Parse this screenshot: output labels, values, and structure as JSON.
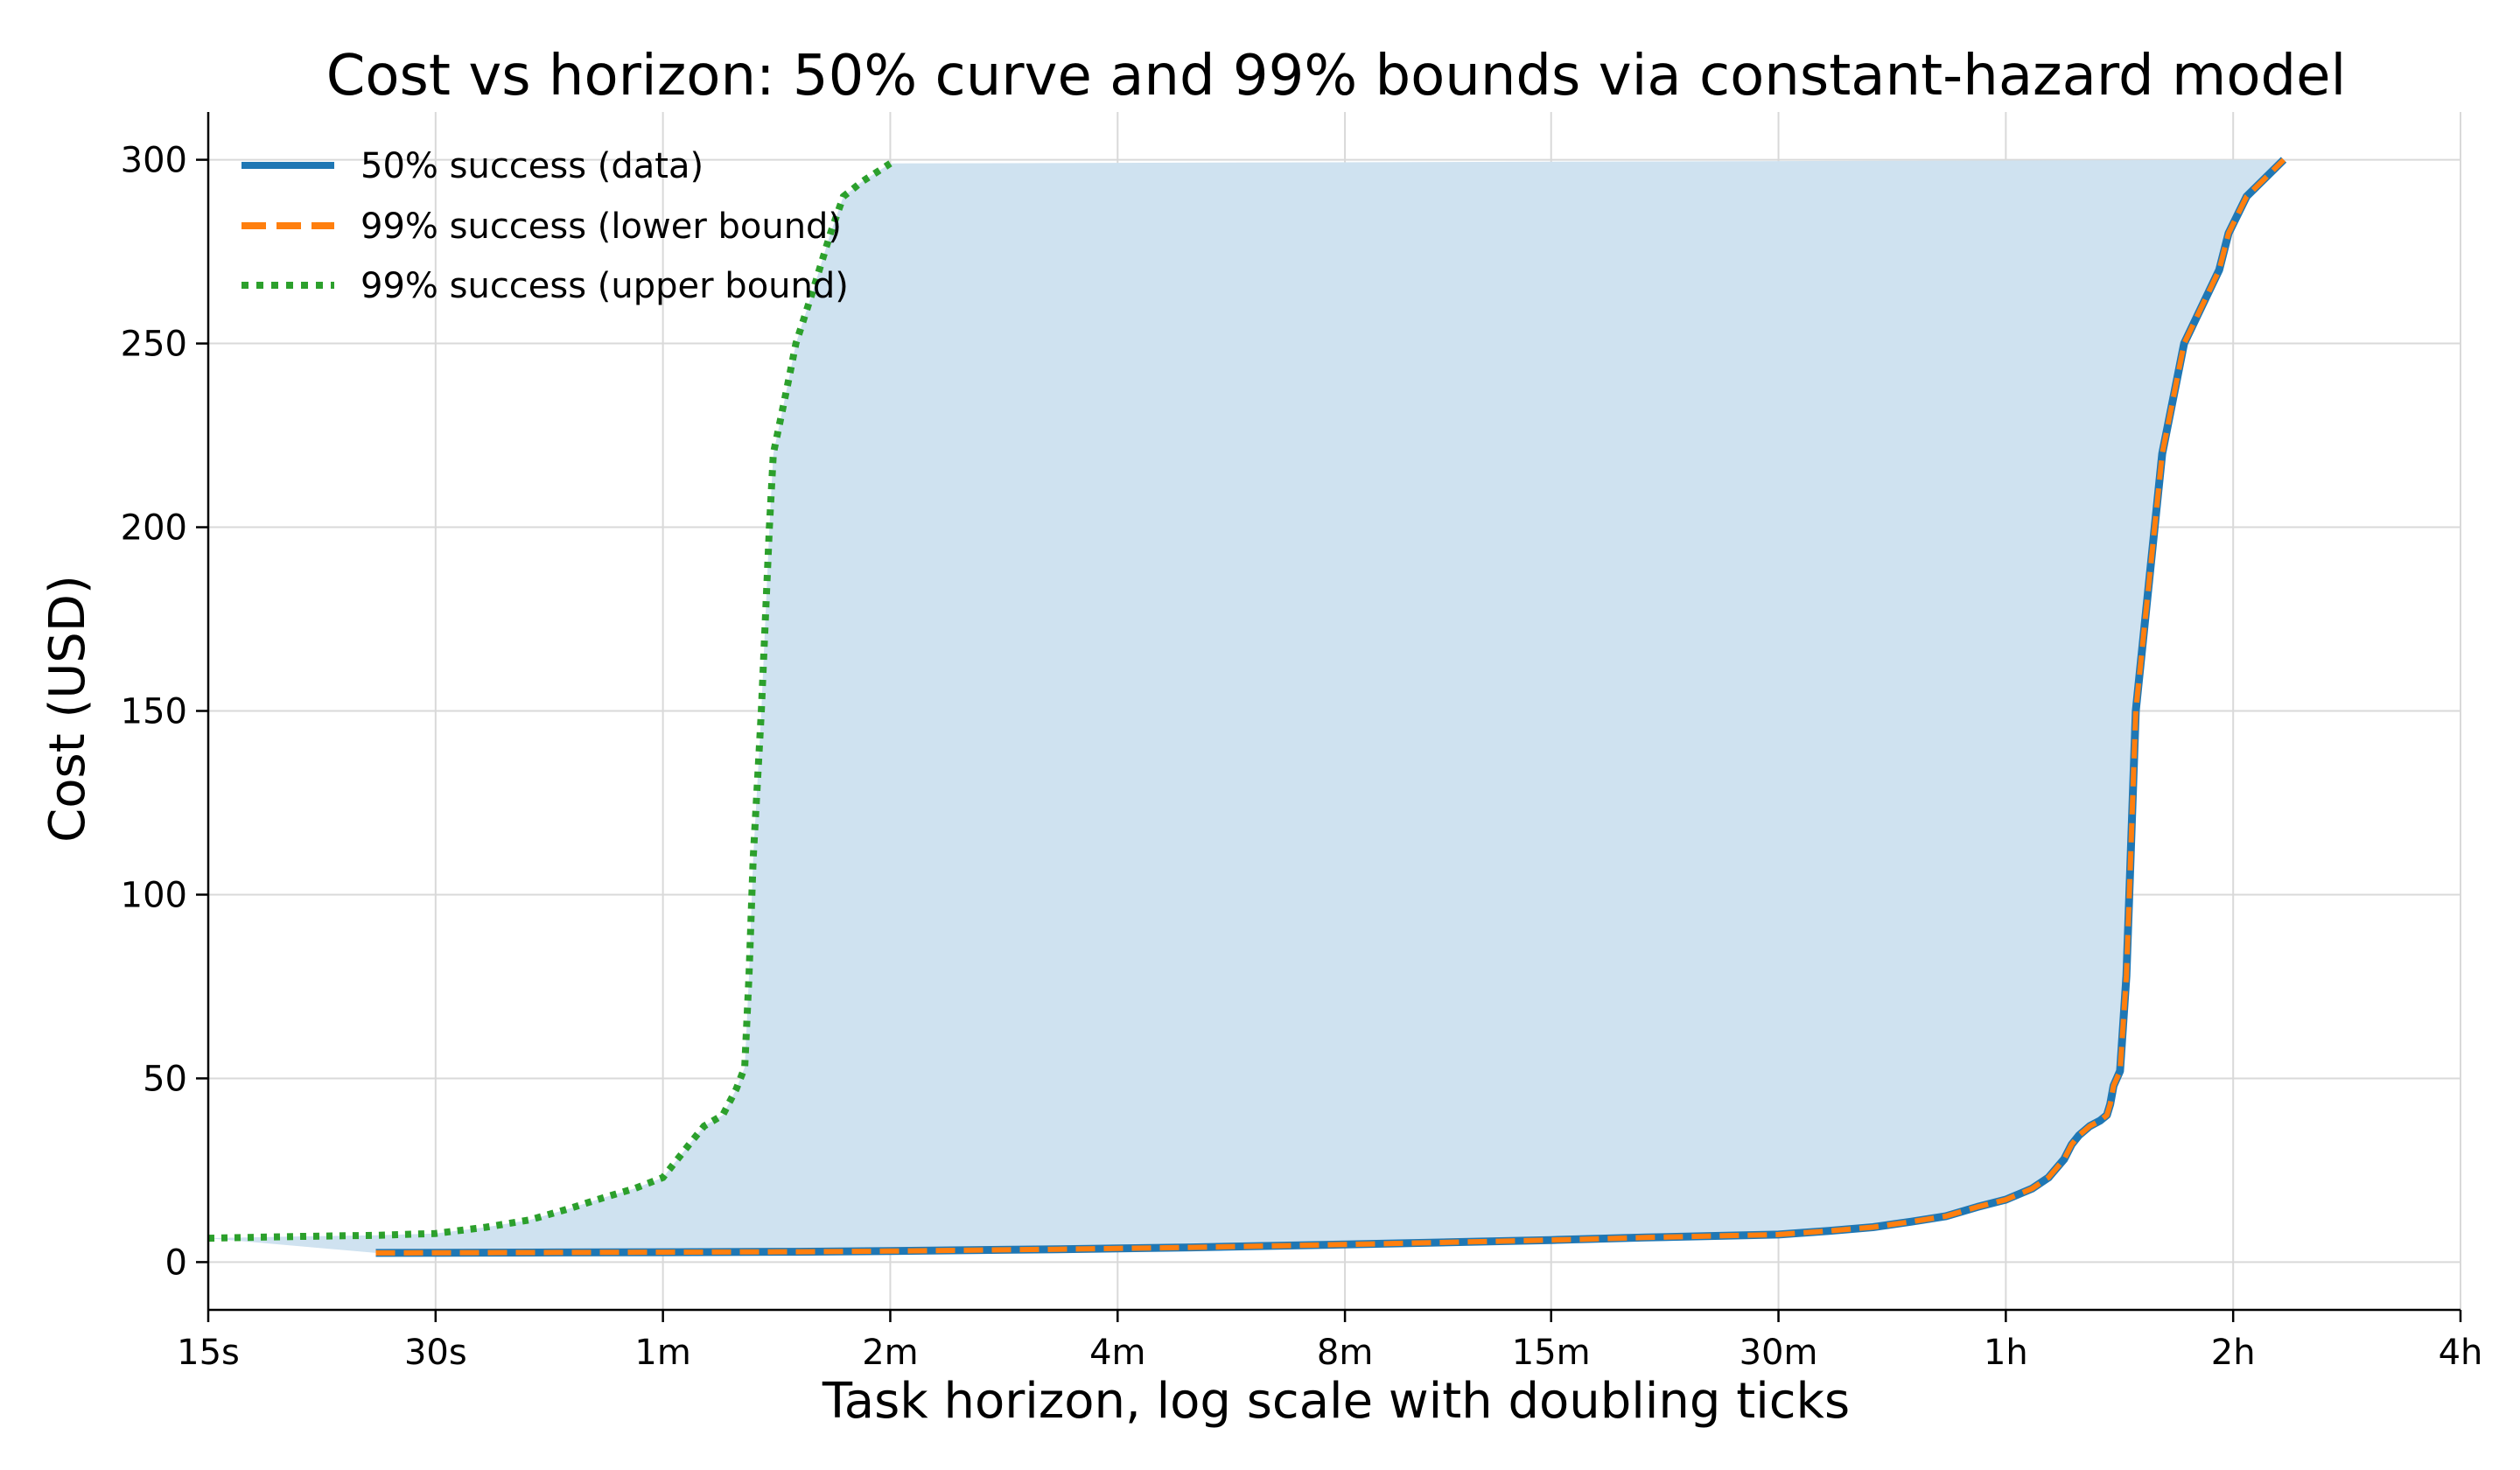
{
  "chart_data": {
    "type": "line",
    "title": "Cost vs horizon: 50% curve and 99% bounds via constant-hazard model",
    "xlabel": "Task horizon, log scale with doubling ticks",
    "ylabel": "Cost (USD)",
    "x_scale": "log2",
    "x_unit": "seconds",
    "xlim": [
      15,
      14400
    ],
    "ylim": [
      -13,
      313
    ],
    "x_ticks": [
      {
        "value": 15,
        "label": "15s"
      },
      {
        "value": 30,
        "label": "30s"
      },
      {
        "value": 60,
        "label": "1m"
      },
      {
        "value": 120,
        "label": "2m"
      },
      {
        "value": 240,
        "label": "4m"
      },
      {
        "value": 480,
        "label": "8m"
      },
      {
        "value": 900,
        "label": "15m"
      },
      {
        "value": 1800,
        "label": "30m"
      },
      {
        "value": 3600,
        "label": "1h"
      },
      {
        "value": 7200,
        "label": "2h"
      },
      {
        "value": 14400,
        "label": "4h"
      }
    ],
    "y_ticks": [
      {
        "value": 0,
        "label": "0"
      },
      {
        "value": 50,
        "label": "50"
      },
      {
        "value": 100,
        "label": "100"
      },
      {
        "value": 150,
        "label": "150"
      },
      {
        "value": 200,
        "label": "200"
      },
      {
        "value": 250,
        "label": "250"
      },
      {
        "value": 300,
        "label": "300"
      }
    ],
    "grid": true,
    "legend_position": "top-left",
    "colors": {
      "data": "#1f77b4",
      "lower": "#ff7f0e",
      "upper": "#2ca02c",
      "band": "#cfe2f0"
    },
    "series": [
      {
        "name": "50% success (data)",
        "style": "solid",
        "x": [
          25,
          40,
          60,
          90,
          120,
          200,
          300,
          480,
          700,
          900,
          1200,
          1800,
          2100,
          2400,
          2700,
          3000,
          3300,
          3600,
          3900,
          4100,
          4300,
          4400,
          4500,
          4650,
          4800,
          4900,
          4950,
          5000,
          5050,
          5100,
          5200,
          5350,
          5800,
          6200,
          6900,
          7100,
          7500,
          8400
        ],
        "y": [
          2.5,
          2.6,
          2.7,
          2.8,
          3,
          3.5,
          4,
          4.8,
          5.5,
          6,
          6.7,
          7.5,
          8.5,
          9.5,
          11,
          12.5,
          15,
          17,
          20,
          23,
          28,
          32,
          34.5,
          37,
          38.5,
          40,
          43,
          48,
          50,
          52,
          78,
          150,
          220,
          250,
          270,
          280,
          290,
          300
        ]
      },
      {
        "name": "99% success (lower bound)",
        "style": "dashed",
        "x": [
          25,
          40,
          60,
          90,
          120,
          200,
          300,
          480,
          700,
          900,
          1200,
          1800,
          2100,
          2400,
          2700,
          3000,
          3300,
          3600,
          3900,
          4100,
          4300,
          4400,
          4500,
          4650,
          4800,
          4900,
          4950,
          5000,
          5050,
          5100,
          5200,
          5350,
          5800,
          6200,
          6900,
          7100,
          7500,
          8400
        ],
        "y": [
          2.5,
          2.6,
          2.7,
          2.8,
          3,
          3.5,
          4,
          4.8,
          5.5,
          6,
          6.7,
          7.5,
          8.5,
          9.5,
          11,
          12.5,
          15,
          17,
          20,
          23,
          28,
          32,
          34.5,
          37,
          38.5,
          40,
          43,
          48,
          50,
          52,
          78,
          150,
          220,
          250,
          270,
          280,
          290,
          300
        ]
      },
      {
        "name": "99% success (upper bound)",
        "style": "dotted",
        "x": [
          15,
          20,
          25,
          30,
          35,
          40,
          45,
          50,
          55,
          60,
          65,
          68,
          72,
          75,
          77,
          78,
          79,
          80,
          81,
          82,
          83,
          84,
          86,
          88,
          90,
          95,
          100,
          104,
          107,
          110,
          120
        ],
        "y": [
          6.5,
          7,
          7.3,
          7.8,
          9.5,
          11.5,
          14.5,
          17.5,
          20,
          23,
          32,
          37,
          40,
          47,
          53,
          78,
          110,
          130,
          150,
          175,
          200,
          220,
          230,
          240,
          250,
          265,
          280,
          290,
          292,
          294,
          299
        ]
      }
    ]
  }
}
